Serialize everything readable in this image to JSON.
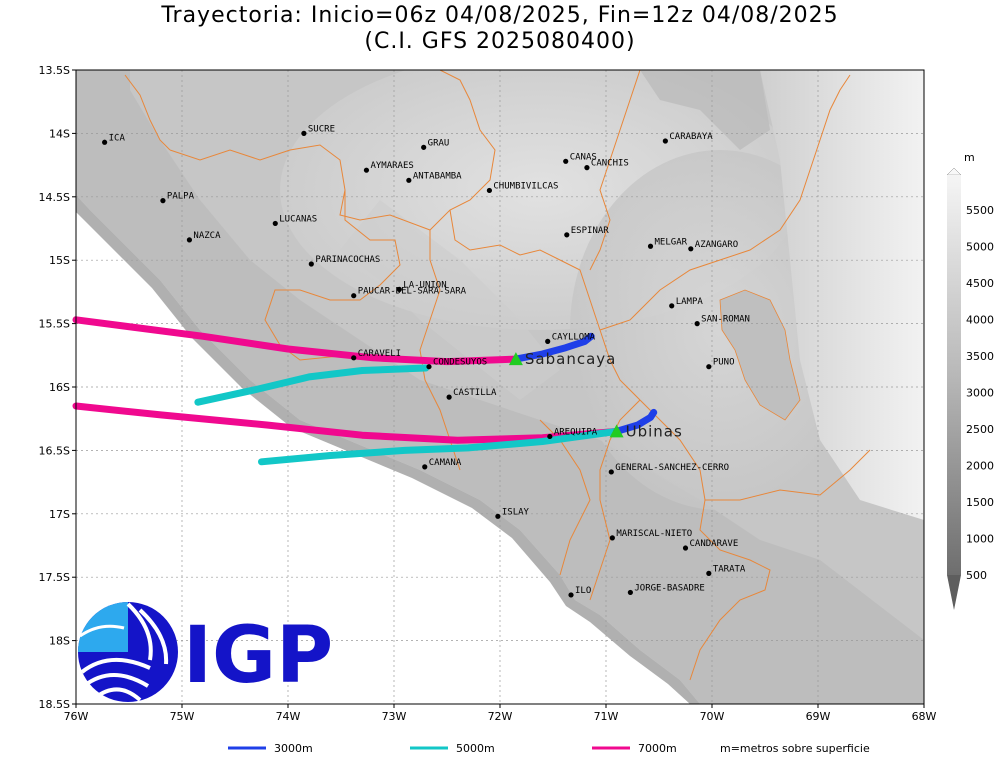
{
  "title": {
    "line1": "Trayectoria: Inicio=06z 04/08/2025, Fin=12z 04/08/2025",
    "line2": "(C.I. GFS 2025080400)"
  },
  "axes": {
    "lon_min": -76,
    "lon_max": -68,
    "lat_min": -18.5,
    "lat_max": -13.5,
    "x_ticks": [
      {
        "v": -76,
        "label": "76W"
      },
      {
        "v": -75,
        "label": "75W"
      },
      {
        "v": -74,
        "label": "74W"
      },
      {
        "v": -73,
        "label": "73W"
      },
      {
        "v": -72,
        "label": "72W"
      },
      {
        "v": -71,
        "label": "71W"
      },
      {
        "v": -70,
        "label": "70W"
      },
      {
        "v": -69,
        "label": "69W"
      },
      {
        "v": -68,
        "label": "68W"
      }
    ],
    "y_ticks": [
      {
        "v": -13.5,
        "label": "13.5S"
      },
      {
        "v": -14,
        "label": "14S"
      },
      {
        "v": -14.5,
        "label": "14.5S"
      },
      {
        "v": -15,
        "label": "15S"
      },
      {
        "v": -15.5,
        "label": "15.5S"
      },
      {
        "v": -16,
        "label": "16S"
      },
      {
        "v": -16.5,
        "label": "16.5S"
      },
      {
        "v": -17,
        "label": "17S"
      },
      {
        "v": -17.5,
        "label": "17.5S"
      },
      {
        "v": -18,
        "label": "18S"
      },
      {
        "v": -18.5,
        "label": "18.5S"
      }
    ]
  },
  "cities": [
    {
      "name": "ICA",
      "lon": -75.73,
      "lat": -14.07
    },
    {
      "name": "SUCRE",
      "lon": -73.85,
      "lat": -14.0
    },
    {
      "name": "GRAU",
      "lon": -72.72,
      "lat": -14.11
    },
    {
      "name": "CANAS",
      "lon": -71.38,
      "lat": -14.22
    },
    {
      "name": "CANCHIS",
      "lon": -71.18,
      "lat": -14.27
    },
    {
      "name": "CARABAYA",
      "lon": -70.44,
      "lat": -14.06
    },
    {
      "name": "AYMARAES",
      "lon": -73.26,
      "lat": -14.29
    },
    {
      "name": "ANTABAMBA",
      "lon": -72.86,
      "lat": -14.37
    },
    {
      "name": "CHUMBIVILCAS",
      "lon": -72.1,
      "lat": -14.45
    },
    {
      "name": "PALPA",
      "lon": -75.18,
      "lat": -14.53
    },
    {
      "name": "LUCANAS",
      "lon": -74.12,
      "lat": -14.71
    },
    {
      "name": "NAZCA",
      "lon": -74.93,
      "lat": -14.84
    },
    {
      "name": "ESPINAR",
      "lon": -71.37,
      "lat": -14.8
    },
    {
      "name": "MELGAR",
      "lon": -70.58,
      "lat": -14.89
    },
    {
      "name": "AZANGARO",
      "lon": -70.2,
      "lat": -14.91
    },
    {
      "name": "PARINACOCHAS",
      "lon": -73.78,
      "lat": -15.03
    },
    {
      "name": "LA-UNION",
      "lon": -72.95,
      "lat": -15.23
    },
    {
      "name": "PAUCAR-DEL-SARA-SARA",
      "lon": -73.38,
      "lat": -15.28
    },
    {
      "name": "LAMPA",
      "lon": -70.38,
      "lat": -15.36
    },
    {
      "name": "SAN-ROMAN",
      "lon": -70.14,
      "lat": -15.5
    },
    {
      "name": "CAYLLOMA",
      "lon": -71.55,
      "lat": -15.64
    },
    {
      "name": "CARAVELI",
      "lon": -73.38,
      "lat": -15.77
    },
    {
      "name": "CONDESUYOS",
      "lon": -72.67,
      "lat": -15.84
    },
    {
      "name": "PUNO",
      "lon": -70.03,
      "lat": -15.84
    },
    {
      "name": "CASTILLA",
      "lon": -72.48,
      "lat": -16.08
    },
    {
      "name": "AREQUIPA",
      "lon": -71.53,
      "lat": -16.39
    },
    {
      "name": "GENERAL-SANCHEZ-CERRO",
      "lon": -70.95,
      "lat": -16.67
    },
    {
      "name": "CAMANA",
      "lon": -72.71,
      "lat": -16.63
    },
    {
      "name": "ISLAY",
      "lon": -72.02,
      "lat": -17.02
    },
    {
      "name": "MARISCAL-NIETO",
      "lon": -70.94,
      "lat": -17.19
    },
    {
      "name": "CANDARAVE",
      "lon": -70.25,
      "lat": -17.27
    },
    {
      "name": "TARATA",
      "lon": -70.03,
      "lat": -17.47
    },
    {
      "name": "ILO",
      "lon": -71.33,
      "lat": -17.64
    },
    {
      "name": "JORGE-BASADRE",
      "lon": -70.77,
      "lat": -17.62
    }
  ],
  "volcanoes": [
    {
      "name": "Sabancaya",
      "lon": -71.85,
      "lat": -15.78
    },
    {
      "name": "Ubinas",
      "lon": -70.9,
      "lat": -16.35
    }
  ],
  "trajectories": [
    {
      "height": "3000m",
      "color": "#1f3fe8",
      "points": [
        [
          -71.85,
          -15.78
        ],
        [
          -71.6,
          -15.74
        ],
        [
          -71.38,
          -15.69
        ],
        [
          -71.2,
          -15.64
        ],
        [
          -71.14,
          -15.6
        ]
      ]
    },
    {
      "height": "5000m",
      "color": "#12c7c7",
      "points": [
        [
          -72.7,
          -15.85
        ],
        [
          -73.3,
          -15.87
        ],
        [
          -73.8,
          -15.92
        ],
        [
          -74.3,
          -16.02
        ],
        [
          -74.85,
          -16.12
        ]
      ]
    },
    {
      "height": "7000m",
      "color": "#f0098f",
      "points": [
        [
          -71.85,
          -15.78
        ],
        [
          -72.5,
          -15.8
        ],
        [
          -73.2,
          -15.77
        ],
        [
          -74.0,
          -15.7
        ],
        [
          -74.8,
          -15.6
        ],
        [
          -76.0,
          -15.47
        ]
      ]
    },
    {
      "height": "3000m",
      "color": "#1f3fe8",
      "points": [
        [
          -70.9,
          -16.35
        ],
        [
          -70.7,
          -16.3
        ],
        [
          -70.58,
          -16.24
        ],
        [
          -70.55,
          -16.2
        ]
      ]
    },
    {
      "height": "5000m",
      "color": "#12c7c7",
      "points": [
        [
          -70.9,
          -16.35
        ],
        [
          -71.6,
          -16.43
        ],
        [
          -72.3,
          -16.48
        ],
        [
          -72.9,
          -16.5
        ],
        [
          -73.6,
          -16.54
        ],
        [
          -74.25,
          -16.59
        ]
      ]
    },
    {
      "height": "7000m",
      "color": "#f0098f",
      "points": [
        [
          -70.9,
          -16.35
        ],
        [
          -71.6,
          -16.4
        ],
        [
          -72.4,
          -16.42
        ],
        [
          -73.3,
          -16.38
        ],
        [
          -74.2,
          -16.3
        ],
        [
          -75.2,
          -16.22
        ],
        [
          -76.0,
          -16.15
        ]
      ]
    }
  ],
  "colorbar": {
    "unit": "m",
    "labels": [
      "500",
      "1000",
      "1500",
      "2000",
      "2500",
      "3000",
      "3500",
      "4000",
      "4500",
      "5000",
      "5500"
    ]
  },
  "legend": {
    "items": [
      {
        "label": "3000m",
        "color": "#1f3fe8"
      },
      {
        "label": "5000m",
        "color": "#12c7c7"
      },
      {
        "label": "7000m",
        "color": "#f0098f"
      }
    ],
    "note": "m=metros sobre superficie"
  },
  "logo": {
    "text": "IGP",
    "color": "#1414c8"
  }
}
